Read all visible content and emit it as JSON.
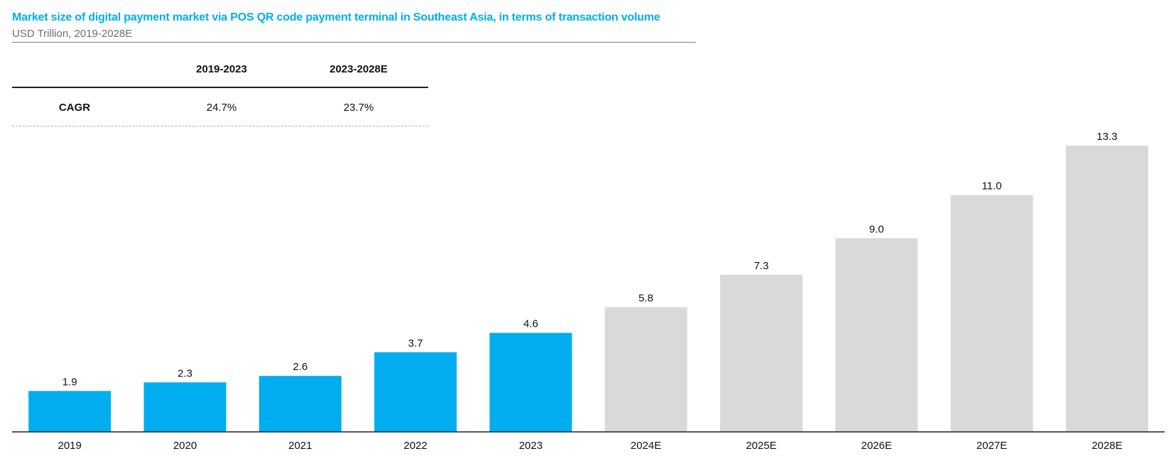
{
  "header": {
    "title": "Market size of digital payment market via POS QR code payment terminal in Southeast Asia, in terms of transaction volume",
    "subtitle": "USD Trillion, 2019-2028E"
  },
  "cagr_table": {
    "columns": [
      "2019-2023",
      "2023-2028E"
    ],
    "row_label": "CAGR",
    "values": [
      "24.7%",
      "23.7%"
    ]
  },
  "colors": {
    "historical": "#00aeef",
    "forecast": "#d9d9d9",
    "title": "#00aeef"
  },
  "chart_data": {
    "type": "bar",
    "categories": [
      "2019",
      "2020",
      "2021",
      "2022",
      "2023",
      "2024E",
      "2025E",
      "2026E",
      "2027E",
      "2028E"
    ],
    "values": [
      1.9,
      2.3,
      2.6,
      3.7,
      4.6,
      5.8,
      7.3,
      9.0,
      11.0,
      13.3
    ],
    "labels": [
      "1.9",
      "2.3",
      "2.6",
      "3.7",
      "4.6",
      "5.8",
      "7.3",
      "9.0",
      "11.0",
      "13.3"
    ],
    "forecast": [
      false,
      false,
      false,
      false,
      false,
      true,
      true,
      true,
      true,
      true
    ],
    "ylim": [
      0,
      13.3
    ],
    "grid": false,
    "legend": "none"
  }
}
